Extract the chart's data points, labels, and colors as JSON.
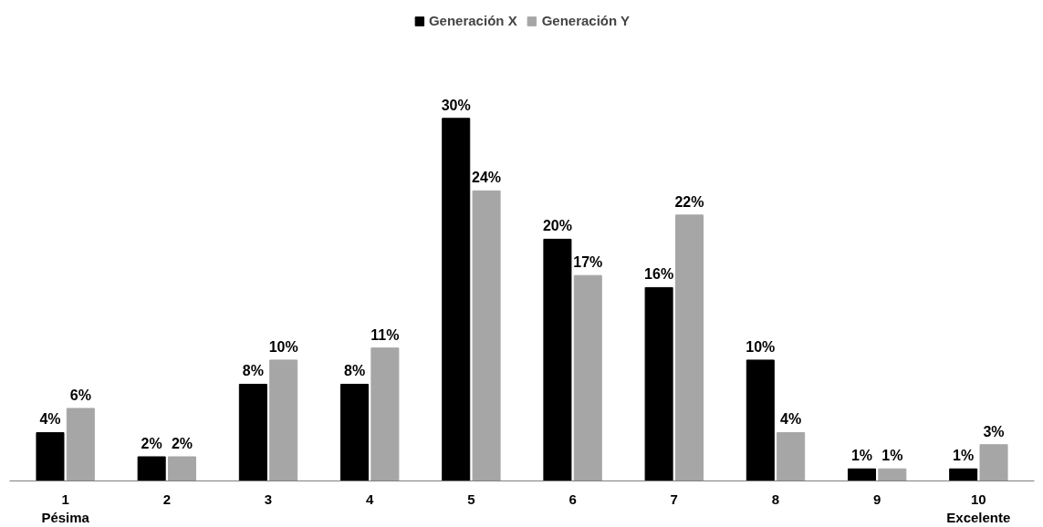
{
  "chart_data": {
    "type": "bar",
    "categories": [
      "1\nPésima",
      "2",
      "3",
      "4",
      "5",
      "6",
      "7",
      "8",
      "9",
      "10\nExcelente"
    ],
    "series": [
      {
        "name": "Generación X",
        "color": "#000000",
        "values": [
          4,
          2,
          8,
          8,
          30,
          20,
          16,
          10,
          1,
          1
        ],
        "value_labels": [
          "4%",
          "2%",
          "8%",
          "8%",
          "30%",
          "20%",
          "16%",
          "10%",
          "1%",
          "1%"
        ]
      },
      {
        "name": "Generación Y",
        "color": "#a6a6a6",
        "values": [
          6,
          2,
          10,
          11,
          24,
          17,
          22,
          4,
          1,
          3
        ],
        "value_labels": [
          "6%",
          "2%",
          "10%",
          "11%",
          "24%",
          "17%",
          "22%",
          "4%",
          "1%",
          "3%"
        ]
      }
    ],
    "legend": "top",
    "grid": false
  }
}
